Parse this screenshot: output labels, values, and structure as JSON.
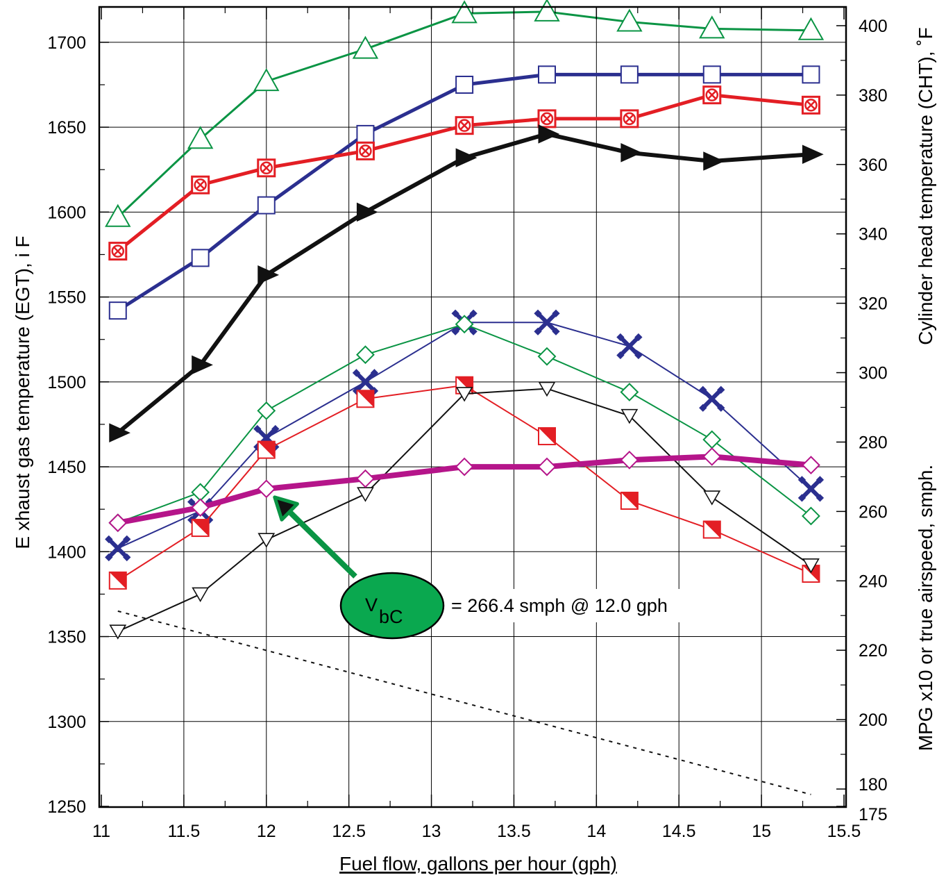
{
  "chart_data": {
    "type": "line",
    "xlabel": "Fuel flow, gallons per hour (gph)",
    "ylabel_left": "E xhaust gas temperature (EGT), i F",
    "ylabel_right_top": "Cylinder head temperature (CHT), ˚F",
    "ylabel_right_bottom": "MPG x10 or true airspeed, smph.",
    "xlim": [
      11,
      15.5
    ],
    "ylim_left": [
      1250,
      1720
    ],
    "ylim_right": [
      175,
      405
    ],
    "grid": true,
    "x_ticks": [
      "11",
      "11.5",
      "12",
      "12.5",
      "13",
      "13.5",
      "14",
      "14.5",
      "15",
      "15.5"
    ],
    "x_tick_values": [
      11,
      11.5,
      12,
      12.5,
      13,
      13.5,
      14,
      14.5,
      15,
      15.5
    ],
    "y_left_ticks": [
      "1250",
      "1300",
      "1350",
      "1400",
      "1450",
      "1500",
      "1550",
      "1600",
      "1650",
      "1700"
    ],
    "y_left_tick_values": [
      1250,
      1300,
      1350,
      1400,
      1450,
      1500,
      1550,
      1600,
      1650,
      1700
    ],
    "y_right_ticks": [
      "175",
      "180",
      "200",
      "220",
      "240",
      "260",
      "280",
      "300",
      "320",
      "340",
      "360",
      "380",
      "400"
    ],
    "y_right_tick_values": [
      175,
      180,
      200,
      220,
      240,
      260,
      280,
      300,
      320,
      340,
      360,
      380,
      400
    ],
    "series": [
      {
        "key": "cht-triangle",
        "color": "#0a9444",
        "marker": "triangle-up",
        "line_width": 3,
        "x": [
          11.1,
          11.6,
          12.0,
          12.6,
          13.2,
          13.7,
          14.2,
          14.7,
          15.3
        ],
        "y": [
          1597,
          1643,
          1677,
          1696,
          1717,
          1718,
          1712,
          1708,
          1707
        ]
      },
      {
        "key": "cht-square",
        "color": "#2b2f8f",
        "marker": "square",
        "line_width": 5,
        "x": [
          11.1,
          11.6,
          12.0,
          12.6,
          13.2,
          13.7,
          14.2,
          14.7,
          15.3
        ],
        "y": [
          1542,
          1573,
          1604,
          1646,
          1675,
          1681,
          1681,
          1681,
          1681
        ]
      },
      {
        "key": "cht-circle-x",
        "color": "#e31e24",
        "marker": "square-circle-x",
        "line_width": 5,
        "x": [
          11.1,
          11.6,
          12.0,
          12.6,
          13.2,
          13.7,
          14.2,
          14.7,
          15.3
        ],
        "y": [
          1577,
          1616,
          1626,
          1636,
          1651,
          1655,
          1655,
          1669,
          1663
        ]
      },
      {
        "key": "cht-arrow",
        "color": "#111111",
        "marker": "triangle-right",
        "line_width": 6,
        "x": [
          11.1,
          11.6,
          12.0,
          12.6,
          13.2,
          13.7,
          14.2,
          14.7,
          15.3
        ],
        "y": [
          1470,
          1510,
          1563,
          1600,
          1632,
          1646,
          1635,
          1630,
          1634
        ]
      },
      {
        "key": "egt-cross",
        "color": "#2b2f8f",
        "marker": "x-cross",
        "line_width": 2,
        "x": [
          11.1,
          11.6,
          12.0,
          12.6,
          13.2,
          13.7,
          14.2,
          14.7,
          15.3
        ],
        "y": [
          1402,
          1424,
          1467,
          1500,
          1535,
          1535,
          1521,
          1490,
          1437
        ]
      },
      {
        "key": "egt-diamond",
        "color": "#0a9444",
        "marker": "diamond",
        "line_width": 2,
        "x": [
          11.1,
          11.6,
          12.0,
          12.6,
          13.2,
          13.7,
          14.2,
          14.7,
          15.3
        ],
        "y": [
          1417,
          1435,
          1483,
          1516,
          1534,
          1515,
          1494,
          1466,
          1421
        ]
      },
      {
        "key": "egt-half-square",
        "color": "#e31e24",
        "marker": "half-square",
        "line_width": 2,
        "x": [
          11.1,
          11.6,
          12.0,
          12.6,
          13.2,
          13.7,
          14.2,
          14.7,
          15.3
        ],
        "y": [
          1383,
          1414,
          1460,
          1490,
          1498,
          1468,
          1430,
          1413,
          1387
        ]
      },
      {
        "key": "egt-triangle-down",
        "color": "#111111",
        "marker": "triangle-down",
        "line_width": 2,
        "x": [
          11.1,
          11.6,
          12.0,
          12.6,
          13.2,
          13.7,
          14.2,
          14.7,
          15.3
        ],
        "y": [
          1353,
          1375,
          1407,
          1434,
          1493,
          1496,
          1480,
          1432,
          1392
        ]
      },
      {
        "key": "tas-diamond",
        "color": "#b5158a",
        "marker": "diamond",
        "line_width": 8,
        "x": [
          11.1,
          11.6,
          12.0,
          12.6,
          13.2,
          13.7,
          14.2,
          14.7,
          15.3
        ],
        "y": [
          1417,
          1426,
          1437,
          1443,
          1450,
          1450,
          1454,
          1456,
          1451
        ]
      },
      {
        "key": "mpg-dotted",
        "color": "#111111",
        "marker": "none",
        "line_width": 2,
        "dashed": true,
        "x": [
          11.1,
          15.3
        ],
        "y": [
          1365,
          1257
        ]
      }
    ],
    "callout": {
      "label_main": "V",
      "label_sub": "bC",
      "text": "= 266.4 smph @  12.0 gph",
      "fill_color": "#0aa84f",
      "arrow_color": "#0a9444",
      "target_x": 12.0,
      "target_y": 1437
    }
  }
}
